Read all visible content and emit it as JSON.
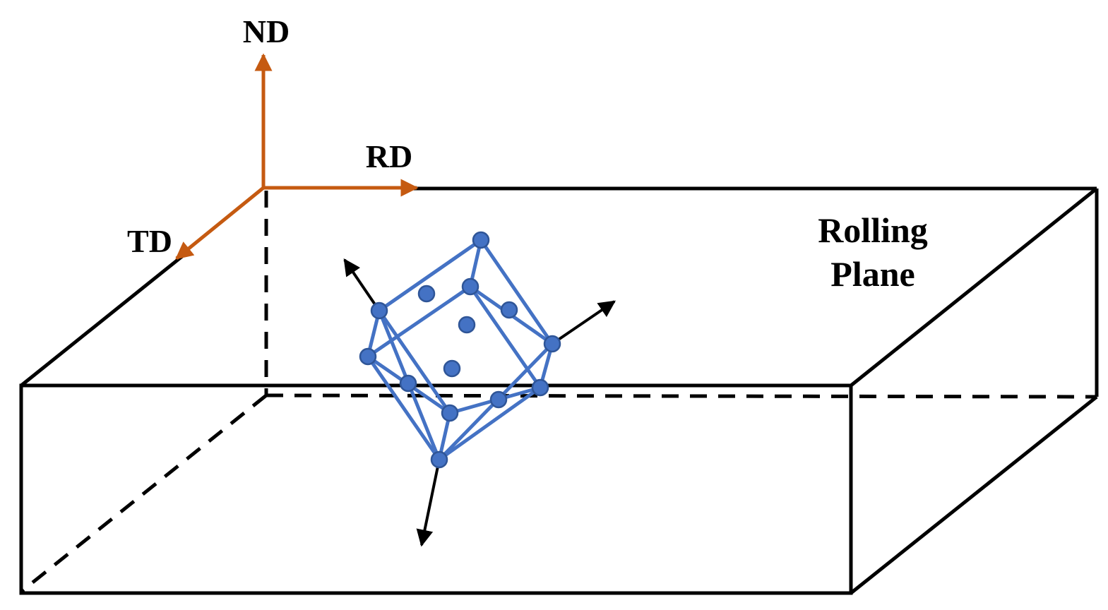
{
  "labels": {
    "normal_direction": "ND",
    "rolling_direction": "RD",
    "transverse_direction": "TD",
    "plane_line1": "Rolling",
    "plane_line2": "Plane"
  },
  "colors": {
    "axis_arrow": "#c55a11",
    "crystal": "#4472c4",
    "crystal_atom_fill": "#4472c4",
    "crystal_atom_stroke": "#2f5597",
    "outline": "#000000",
    "background": "#ffffff"
  }
}
